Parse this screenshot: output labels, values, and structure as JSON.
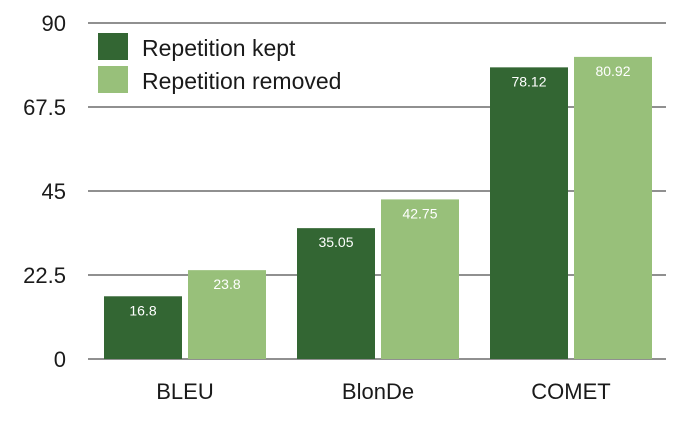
{
  "chart_data": {
    "type": "bar",
    "categories": [
      "BLEU",
      "BlonDe",
      "COMET"
    ],
    "series": [
      {
        "name": "Repetition kept",
        "values": [
          16.8,
          35.05,
          78.12
        ],
        "value_labels": [
          "16.8",
          "35.05",
          "78.12"
        ],
        "color": "#336633"
      },
      {
        "name": "Repetition removed",
        "values": [
          23.8,
          42.75,
          80.92
        ],
        "value_labels": [
          "23.8",
          "42.75",
          "80.92"
        ],
        "color": "#98c07a"
      }
    ],
    "yticks": [
      0,
      22.5,
      45,
      67.5,
      90
    ],
    "ytick_labels": [
      "0",
      "22.5",
      "45",
      "67.5",
      "90"
    ],
    "ylim": [
      0,
      90
    ],
    "grid": true,
    "legend_position": "top-left",
    "title": "",
    "xlabel": "",
    "ylabel": ""
  }
}
